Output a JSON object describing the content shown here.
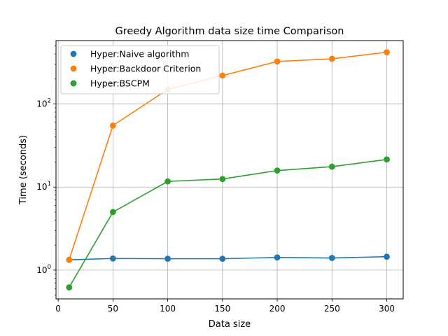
{
  "chart_data": {
    "type": "line",
    "title": "Greedy Algorithm data size time Comparison",
    "xlabel": "Data size",
    "ylabel": "Time (seconds)",
    "x": [
      10,
      50,
      100,
      150,
      200,
      250,
      300
    ],
    "xlim": [
      -2,
      315
    ],
    "ylim": [
      0.45,
      580
    ],
    "y_scale": "log",
    "xticks": [
      0,
      50,
      100,
      150,
      200,
      250,
      300
    ],
    "yticks": [
      1,
      10,
      100
    ],
    "ytick_labels": [
      {
        "base": "10",
        "exp": "0"
      },
      {
        "base": "10",
        "exp": "1"
      },
      {
        "base": "10",
        "exp": "2"
      }
    ],
    "grid": true,
    "legend_position": "top-left",
    "series": [
      {
        "name": "Hyper:Naive algorithm",
        "color": "#1f77b4",
        "values": [
          1.33,
          1.38,
          1.37,
          1.37,
          1.42,
          1.4,
          1.45
        ]
      },
      {
        "name": "Hyper:Backdoor Criterion",
        "color": "#ff7f0e",
        "values": [
          1.33,
          55,
          150,
          220,
          325,
          350,
          420
        ]
      },
      {
        "name": "Hyper:BSCPM",
        "color": "#2ca02c",
        "values": [
          0.62,
          5.0,
          11.7,
          12.5,
          15.8,
          17.6,
          21.5
        ]
      }
    ]
  }
}
